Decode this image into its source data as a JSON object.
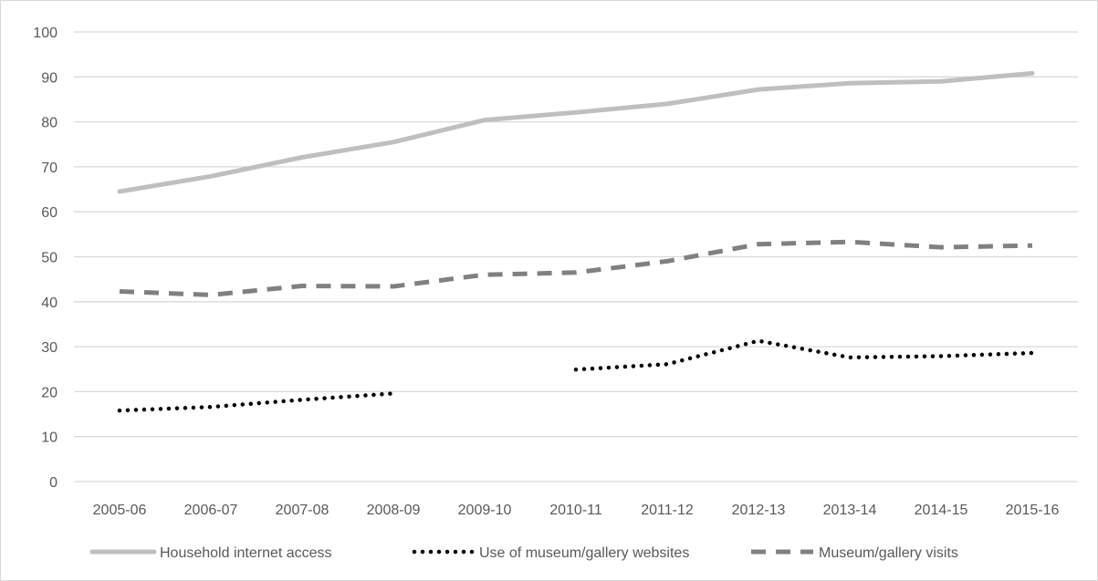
{
  "chart_data": {
    "type": "line",
    "title": "",
    "xlabel": "",
    "ylabel": "",
    "categories": [
      "2005-06",
      "2006-07",
      "2007-08",
      "2008-09",
      "2009-10",
      "2010-11",
      "2011-12",
      "2012-13",
      "2013-14",
      "2014-15",
      "2015-16"
    ],
    "ylim": [
      0,
      100
    ],
    "yticks": [
      0,
      10,
      20,
      30,
      40,
      50,
      60,
      70,
      80,
      90,
      100
    ],
    "grid": true,
    "legend_position": "bottom",
    "series": [
      {
        "name": "Household internet access",
        "values": [
          64.5,
          67.9,
          72.1,
          75.5,
          80.4,
          82.1,
          84.0,
          87.2,
          88.6,
          89.0,
          90.8
        ],
        "color": "#bfbfbf",
        "style": "solid"
      },
      {
        "name": "Use of museum/gallery websites",
        "values": [
          15.8,
          16.6,
          18.2,
          19.6,
          null,
          24.9,
          26.1,
          31.3,
          27.6,
          27.9,
          28.6
        ],
        "color": "#000000",
        "style": "dotted"
      },
      {
        "name": "Museum/gallery visits",
        "values": [
          42.3,
          41.5,
          43.5,
          43.4,
          46.0,
          46.5,
          49.0,
          52.8,
          53.3,
          52.1,
          52.5
        ],
        "color": "#808080",
        "style": "dashed"
      }
    ]
  }
}
